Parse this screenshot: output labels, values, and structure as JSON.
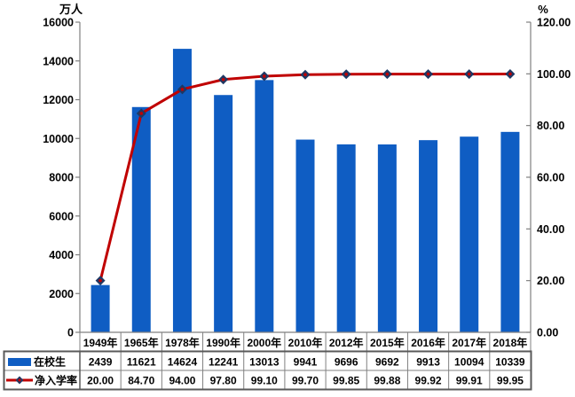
{
  "chart_data": {
    "type": "bar+line",
    "categories": [
      "1949年",
      "1965年",
      "1978年",
      "1990年",
      "2000年",
      "2010年",
      "2012年",
      "2015年",
      "2016年",
      "2017年",
      "2018年"
    ],
    "series": [
      {
        "name": "在校生",
        "type": "bar",
        "axis": "left",
        "values": [
          2439,
          11621,
          14624,
          12241,
          13013,
          9941,
          9696,
          9692,
          9913,
          10094,
          10339
        ],
        "display": [
          "2439",
          "11621",
          "14624",
          "12241",
          "13013",
          "9941",
          "9696",
          "9692",
          "9913",
          "10094",
          "10339"
        ]
      },
      {
        "name": "净入学率",
        "type": "line",
        "axis": "right",
        "values": [
          20.0,
          84.7,
          94.0,
          97.8,
          99.1,
          99.7,
          99.85,
          99.88,
          99.92,
          99.91,
          99.95
        ],
        "display": [
          "20.00",
          "84.70",
          "94.00",
          "97.80",
          "99.10",
          "99.70",
          "99.85",
          "99.88",
          "99.92",
          "99.91",
          "99.95"
        ]
      }
    ],
    "left_axis": {
      "title": "万人",
      "min": 0,
      "max": 16000,
      "labels": [
        "0",
        "2000",
        "4000",
        "6000",
        "8000",
        "10000",
        "12000",
        "14000",
        "16000"
      ]
    },
    "right_axis": {
      "title": "%",
      "min": 0,
      "max": 120,
      "labels": [
        "0.00",
        "20.00",
        "40.00",
        "60.00",
        "80.00",
        "100.00",
        "120.00"
      ]
    },
    "grid": false,
    "legend_position": "table-left",
    "colors": {
      "bar": "#0f5dc3",
      "line": "#c00000",
      "marker": "#1f3864",
      "marker_center": "#c00000",
      "axis": "#808080",
      "table_border": "#808080",
      "table_frame": "#595959",
      "text": "#000000"
    }
  }
}
